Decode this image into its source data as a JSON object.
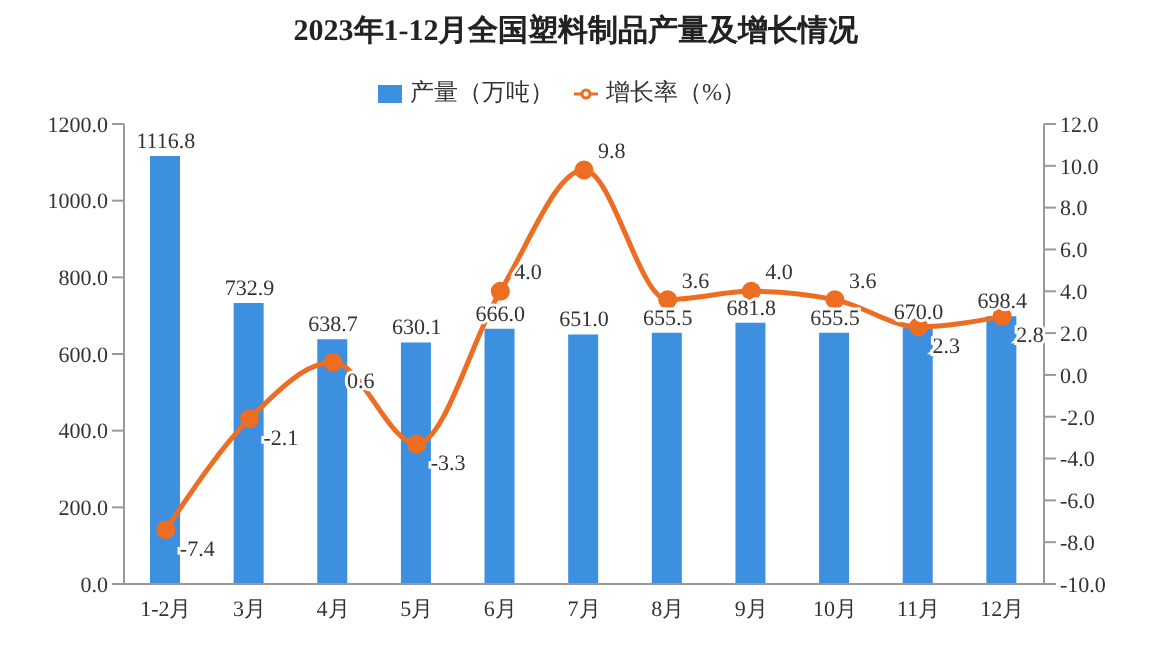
{
  "chart_data": {
    "type": "bar",
    "title": "2023年1-12月全国塑料制品产量及增长情况",
    "categories": [
      "1-2月",
      "3月",
      "4月",
      "5月",
      "6月",
      "7月",
      "8月",
      "9月",
      "10月",
      "11月",
      "12月"
    ],
    "series": [
      {
        "name": "产量（万吨）",
        "color": "#3d8fe0",
        "values": [
          1116.8,
          732.9,
          638.7,
          630.1,
          666.0,
          651.0,
          655.5,
          681.8,
          655.5,
          670.0,
          698.4
        ],
        "value_labels": [
          "1116.8",
          "732.9",
          "638.7",
          "630.1",
          "666.0",
          "651.0",
          "655.5",
          "681.8",
          "655.5",
          "670.0",
          "698.4"
        ]
      },
      {
        "name": "增长率（%）",
        "type": "line",
        "axis": "y2",
        "color": "#ed6d22",
        "values": [
          -7.4,
          -2.1,
          0.6,
          -3.3,
          4.0,
          9.8,
          3.6,
          4.0,
          3.6,
          2.3,
          2.8
        ],
        "value_labels": [
          "-7.4",
          "-2.1",
          "0.6",
          "-3.3",
          "4.0",
          "9.8",
          "3.6",
          "4.0",
          "3.6",
          "2.3",
          "2.8"
        ]
      }
    ],
    "ylim": [
      0,
      1200
    ],
    "yticks": [
      {
        "value": 0,
        "label": "0.0"
      },
      {
        "value": 200,
        "label": "200.0"
      },
      {
        "value": 400,
        "label": "400.0"
      },
      {
        "value": 600,
        "label": "600.0"
      },
      {
        "value": 800,
        "label": "800.0"
      },
      {
        "value": 1000,
        "label": "1000.0"
      },
      {
        "value": 1200,
        "label": "1200.0"
      }
    ],
    "y2lim": [
      -10,
      12
    ],
    "y2ticks": [
      {
        "value": -10,
        "label": "-10.0"
      },
      {
        "value": -8,
        "label": "-8.0"
      },
      {
        "value": -6,
        "label": "-6.0"
      },
      {
        "value": -4,
        "label": "-4.0"
      },
      {
        "value": -2,
        "label": "-2.0"
      },
      {
        "value": 0,
        "label": "0.0"
      },
      {
        "value": 2,
        "label": "2.0"
      },
      {
        "value": 4,
        "label": "4.0"
      },
      {
        "value": 6,
        "label": "6.0"
      },
      {
        "value": 8,
        "label": "8.0"
      },
      {
        "value": 10,
        "label": "10.0"
      },
      {
        "value": 12,
        "label": "12.0"
      }
    ],
    "legend": "top",
    "marker": "circle"
  }
}
